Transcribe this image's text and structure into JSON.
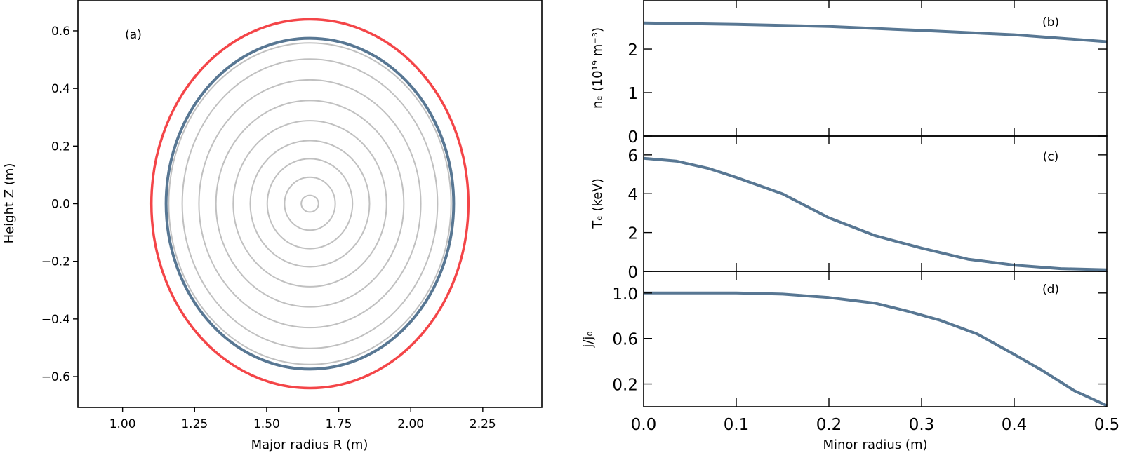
{
  "colors": {
    "boundary": "#f44548",
    "lcfs": "#587793",
    "flux_surface": "#c0c0c0",
    "profile": "#587793",
    "axis": "#000000"
  },
  "chart_data": [
    {
      "id": "a",
      "type": "line",
      "panel_label": "(a)",
      "xlabel": "Major radius R (m)",
      "ylabel": "Height Z (m)",
      "xlim": [
        0.845,
        2.455
      ],
      "ylim": [
        -0.707,
        0.707
      ],
      "xticks": [
        1.0,
        1.25,
        1.5,
        1.75,
        2.0,
        2.25
      ],
      "xtick_labels": [
        "1.00",
        "1.25",
        "1.50",
        "1.75",
        "2.00",
        "2.25"
      ],
      "yticks": [
        -0.6,
        -0.4,
        -0.2,
        0.0,
        0.2,
        0.4,
        0.6
      ],
      "ytick_labels": [
        "−0.6",
        "−0.4",
        "−0.2",
        "0.0",
        "0.2",
        "0.4",
        "0.6"
      ],
      "grid": false,
      "center_R": 1.65,
      "flux_surfaces": [
        {
          "a": 0.03,
          "b": 0.029
        },
        {
          "a": 0.088,
          "b": 0.092
        },
        {
          "a": 0.148,
          "b": 0.156
        },
        {
          "a": 0.207,
          "b": 0.219
        },
        {
          "a": 0.266,
          "b": 0.288
        },
        {
          "a": 0.326,
          "b": 0.358
        },
        {
          "a": 0.385,
          "b": 0.43
        },
        {
          "a": 0.443,
          "b": 0.502
        },
        {
          "a": 0.49,
          "b": 0.558
        }
      ],
      "last_closed_surface": {
        "a": 0.499,
        "b": 0.574
      },
      "outer_boundary": {
        "a": 0.55,
        "b": 0.64
      }
    },
    {
      "id": "b",
      "type": "line",
      "panel_label": "(b)",
      "ylabel": "nₑ (10¹⁹ m⁻³)",
      "xlim": [
        0,
        0.5
      ],
      "ylim": [
        0,
        3.13
      ],
      "yticks": [
        0,
        1,
        2
      ],
      "ytick_labels": [
        "0",
        "1",
        "2"
      ],
      "x": [
        0,
        0.1,
        0.2,
        0.3,
        0.4,
        0.5
      ],
      "y": [
        2.6,
        2.57,
        2.52,
        2.43,
        2.33,
        2.17
      ]
    },
    {
      "id": "c",
      "type": "line",
      "panel_label": "(c)",
      "ylabel": "Tₑ (keV)",
      "xlim": [
        0,
        0.5
      ],
      "ylim": [
        0,
        6.97
      ],
      "yticks": [
        0,
        2,
        4,
        6
      ],
      "ytick_labels": [
        "0",
        "2",
        "4",
        "6"
      ],
      "x": [
        0,
        0.035,
        0.07,
        0.1,
        0.15,
        0.2,
        0.25,
        0.3,
        0.35,
        0.4,
        0.45,
        0.5
      ],
      "y": [
        5.82,
        5.68,
        5.3,
        4.84,
        3.99,
        2.76,
        1.84,
        1.2,
        0.63,
        0.32,
        0.14,
        0.08
      ]
    },
    {
      "id": "d",
      "type": "line",
      "panel_label": "(d)",
      "ylabel": "j/j₀",
      "xlabel": "Minor radius (m)",
      "xlim": [
        0,
        0.5
      ],
      "ylim": [
        0,
        1.19
      ],
      "xticks": [
        0,
        0.1,
        0.2,
        0.3,
        0.4,
        0.5
      ],
      "xtick_labels": [
        "0.0",
        "0.1",
        "0.2",
        "0.3",
        "0.4",
        "0.5"
      ],
      "yticks": [
        0.2,
        0.6,
        1.0
      ],
      "ytick_labels": [
        "0.2",
        "0.6",
        "1.0"
      ],
      "x": [
        0,
        0.1,
        0.15,
        0.2,
        0.25,
        0.285,
        0.32,
        0.36,
        0.4,
        0.43,
        0.465,
        0.5
      ],
      "y": [
        1.0,
        1.0,
        0.99,
        0.96,
        0.91,
        0.84,
        0.76,
        0.64,
        0.46,
        0.32,
        0.14,
        0.01
      ]
    }
  ]
}
